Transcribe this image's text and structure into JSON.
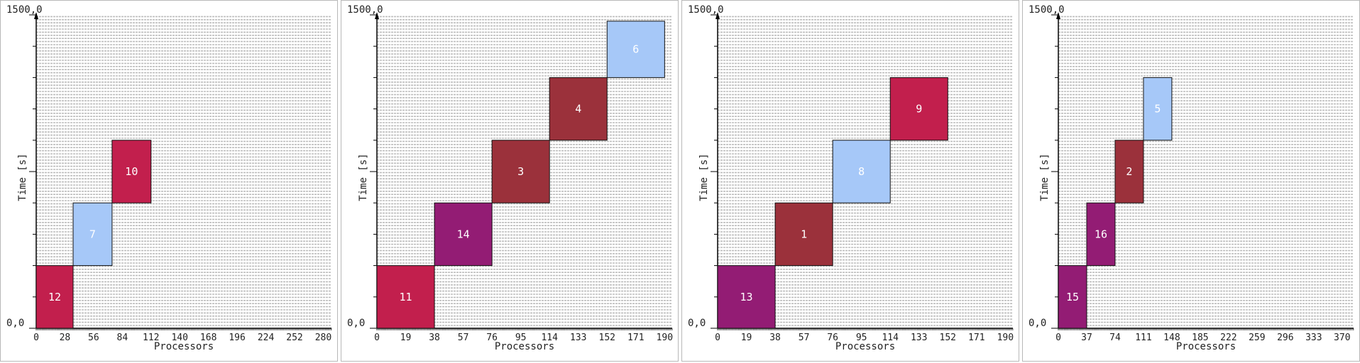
{
  "chart_data": [
    {
      "type": "bar",
      "xlabel": "Processors",
      "ylabel": "Time [s]",
      "y_top_label": "1500,0",
      "origin_label": "0,0",
      "xlim": [
        0,
        288
      ],
      "ylim": [
        0,
        1500
      ],
      "x_ticks": [
        "0",
        "28",
        "56",
        "84",
        "112",
        "140",
        "168",
        "196",
        "224",
        "252",
        "280"
      ],
      "jobs": [
        {
          "label": "12",
          "x0": 0,
          "x1": 36,
          "y0": 0,
          "y1": 300,
          "color": "#c21f4d"
        },
        {
          "label": "7",
          "x0": 36,
          "x1": 74,
          "y0": 300,
          "y1": 600,
          "color": "#a6c8f8"
        },
        {
          "label": "10",
          "x0": 74,
          "x1": 112,
          "y0": 600,
          "y1": 900,
          "color": "#c21f4d"
        }
      ]
    },
    {
      "type": "bar",
      "xlabel": "Processors",
      "ylabel": "Time [s]",
      "y_top_label": "1500,0",
      "origin_label": "0,0",
      "xlim": [
        0,
        195
      ],
      "ylim": [
        0,
        1500
      ],
      "x_ticks": [
        "0",
        "19",
        "38",
        "57",
        "76",
        "95",
        "114",
        "133",
        "152",
        "171",
        "190"
      ],
      "jobs": [
        {
          "label": "11",
          "x0": 0,
          "x1": 38,
          "y0": 0,
          "y1": 300,
          "color": "#c21f4d"
        },
        {
          "label": "14",
          "x0": 38,
          "x1": 76,
          "y0": 300,
          "y1": 600,
          "color": "#931c74"
        },
        {
          "label": "3",
          "x0": 76,
          "x1": 114,
          "y0": 600,
          "y1": 900,
          "color": "#9b313b"
        },
        {
          "label": "4",
          "x0": 114,
          "x1": 152,
          "y0": 900,
          "y1": 1200,
          "color": "#9b313b"
        },
        {
          "label": "6",
          "x0": 152,
          "x1": 190,
          "y0": 1200,
          "y1": 1470,
          "color": "#a6c8f8"
        }
      ]
    },
    {
      "type": "bar",
      "xlabel": "Processors",
      "ylabel": "Time [s]",
      "y_top_label": "1500,0",
      "origin_label": "0,0",
      "xlim": [
        0,
        195
      ],
      "ylim": [
        0,
        1500
      ],
      "x_ticks": [
        "0",
        "19",
        "38",
        "57",
        "76",
        "95",
        "114",
        "133",
        "152",
        "171",
        "190"
      ],
      "jobs": [
        {
          "label": "13",
          "x0": 0,
          "x1": 38,
          "y0": 0,
          "y1": 300,
          "color": "#931c74"
        },
        {
          "label": "1",
          "x0": 38,
          "x1": 76,
          "y0": 300,
          "y1": 600,
          "color": "#9b313b"
        },
        {
          "label": "8",
          "x0": 76,
          "x1": 114,
          "y0": 600,
          "y1": 900,
          "color": "#a6c8f8"
        },
        {
          "label": "9",
          "x0": 114,
          "x1": 152,
          "y0": 900,
          "y1": 1200,
          "color": "#c21f4d"
        }
      ]
    },
    {
      "type": "bar",
      "xlabel": "Processors",
      "ylabel": "Time [s]",
      "y_top_label": "1500,0",
      "origin_label": "0,0",
      "xlim": [
        0,
        385
      ],
      "ylim": [
        0,
        1500
      ],
      "x_ticks": [
        "0",
        "37",
        "74",
        "111",
        "148",
        "185",
        "222",
        "259",
        "296",
        "333",
        "370"
      ],
      "jobs": [
        {
          "label": "15",
          "x0": 0,
          "x1": 37,
          "y0": 0,
          "y1": 300,
          "color": "#931c74"
        },
        {
          "label": "16",
          "x0": 37,
          "x1": 74,
          "y0": 300,
          "y1": 600,
          "color": "#931c74"
        },
        {
          "label": "2",
          "x0": 74,
          "x1": 111,
          "y0": 600,
          "y1": 900,
          "color": "#9b313b"
        },
        {
          "label": "5",
          "x0": 111,
          "x1": 148,
          "y0": 900,
          "y1": 1200,
          "color": "#a6c8f8"
        }
      ]
    }
  ]
}
